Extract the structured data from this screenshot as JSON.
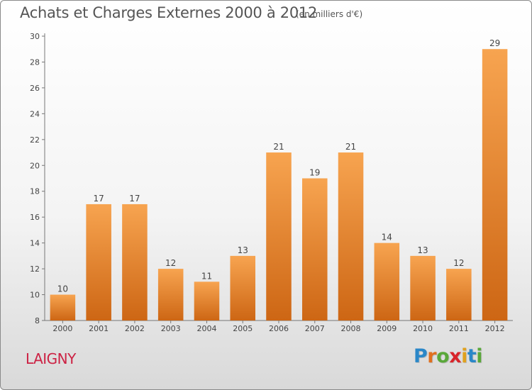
{
  "chart_data": {
    "type": "bar",
    "title": "Achats et Charges Externes 2000 à 2012",
    "subtitle": "(en milliers d'€)",
    "categories": [
      "2000",
      "2001",
      "2002",
      "2003",
      "2004",
      "2005",
      "2006",
      "2007",
      "2008",
      "2009",
      "2010",
      "2011",
      "2012"
    ],
    "values": [
      10,
      17,
      17,
      12,
      11,
      13,
      21,
      19,
      21,
      14,
      13,
      12,
      29
    ],
    "ylim": [
      8,
      30
    ],
    "yticks": [
      8,
      10,
      12,
      14,
      16,
      18,
      20,
      22,
      24,
      26,
      28,
      30
    ],
    "grid": false,
    "bar_color": "#f0913a"
  },
  "commune": "LAIGNY",
  "logo": {
    "letters": [
      "P",
      "r",
      "o",
      "x",
      "i",
      "t",
      "i"
    ],
    "colors": [
      "#2a87c8",
      "#e0701f",
      "#5aa83a",
      "#d8242a",
      "#e0a21f",
      "#2a87c8",
      "#5aa83a"
    ]
  }
}
